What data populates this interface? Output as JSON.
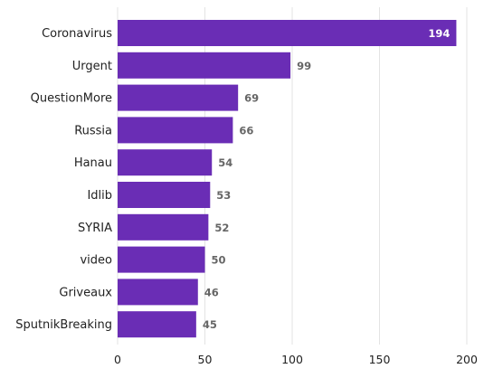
{
  "chart_data": {
    "type": "bar",
    "orientation": "horizontal",
    "categories": [
      "Coronavirus",
      "Urgent",
      "QuestionMore",
      "Russia",
      "Hanau",
      "Idlib",
      "SYRIA",
      "video",
      "Griveaux",
      "SputnikBreaking"
    ],
    "values": [
      194,
      99,
      69,
      66,
      54,
      53,
      52,
      50,
      46,
      45
    ],
    "xlim": [
      0,
      210
    ],
    "xticks": [
      0,
      50,
      100,
      150,
      200
    ],
    "grid": true,
    "bar_color": "#6A2DB5",
    "title": "",
    "xlabel": "",
    "ylabel": ""
  }
}
